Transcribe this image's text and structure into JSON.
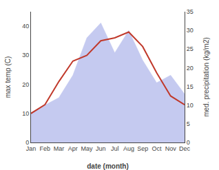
{
  "chart_data": {
    "type": "line",
    "xlabel": "date (month)",
    "ylabel": "max temp (C)",
    "y2label": "med. precipitation (kg/m2)",
    "categories": [
      "Jan",
      "Feb",
      "Mar",
      "Apr",
      "May",
      "Jun",
      "Jul",
      "Aug",
      "Sep",
      "Oct",
      "Nov",
      "Dec"
    ],
    "series": [
      {
        "type": "area",
        "axis": "y2",
        "color": "#c5caf0",
        "values": [
          8,
          10,
          12,
          18,
          28,
          32,
          24,
          30,
          22,
          16,
          18,
          13
        ]
      },
      {
        "type": "line",
        "color": "#c0392b",
        "values": [
          10,
          13,
          21,
          28,
          30,
          35,
          36,
          38,
          33,
          24,
          16,
          13
        ]
      }
    ],
    "ylim": [
      0,
      45
    ],
    "yticks": [
      0,
      10,
      20,
      30,
      40
    ],
    "y2lim": [
      0,
      35
    ],
    "y2ticks": [
      0,
      5,
      10,
      15,
      20,
      25,
      30,
      35
    ],
    "grid": false
  }
}
